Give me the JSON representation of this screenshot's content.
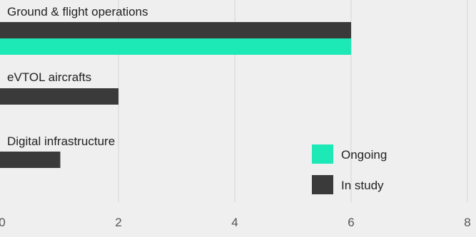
{
  "chart_data": {
    "type": "bar",
    "orientation": "horizontal",
    "categories": [
      "Ground & flight operations",
      "eVTOL aircrafts",
      "Digital infrastructure"
    ],
    "series": [
      {
        "name": "In study",
        "color": "#3a3a3a",
        "values": [
          6,
          2,
          1
        ]
      },
      {
        "name": "Ongoing",
        "color": "#1de9b6",
        "values": [
          6,
          0,
          0
        ]
      }
    ],
    "xlim": [
      0,
      8
    ],
    "xticks": [
      "0",
      "2",
      "4",
      "6",
      "8"
    ],
    "grid": true,
    "legend_position": "bottom-right",
    "background": "#efefef"
  }
}
